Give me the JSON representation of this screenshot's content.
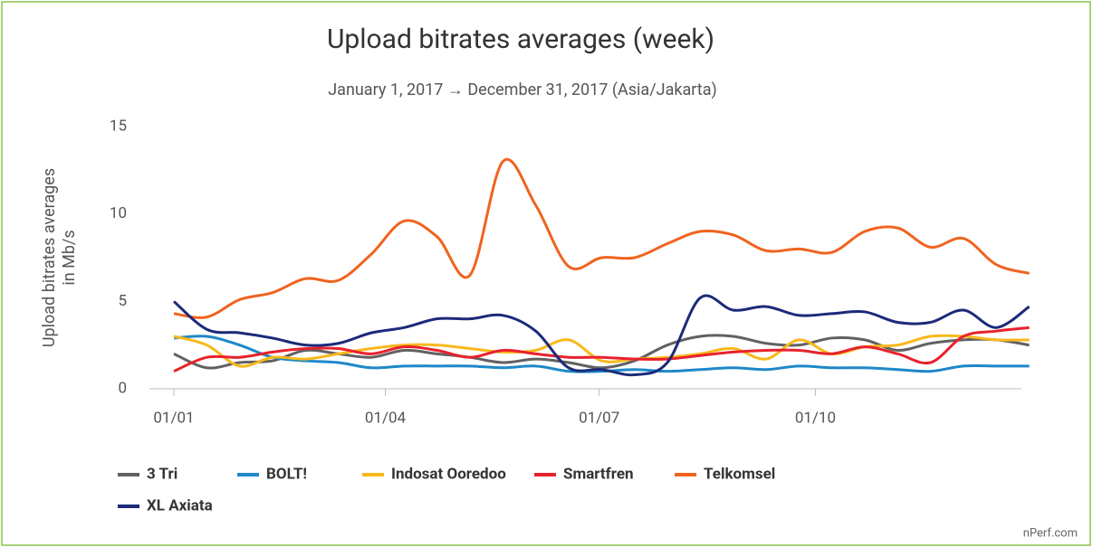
{
  "chart_data": {
    "type": "line",
    "title": "Upload bitrates averages (week)",
    "subtitle": "January 1, 2017 → December 31, 2017 (Asia/Jakarta)",
    "ylabel": [
      "Upload bitrates averages",
      "in Mb/s"
    ],
    "credit": "nPerf.com",
    "x": [
      "01/01",
      "15/01",
      "29/01",
      "12/02",
      "26/02",
      "12/03",
      "26/03",
      "09/04",
      "23/04",
      "07/05",
      "21/05",
      "04/06",
      "18/06",
      "02/07",
      "16/07",
      "30/07",
      "13/08",
      "27/08",
      "10/09",
      "24/09",
      "08/10",
      "22/10",
      "05/11",
      "19/11",
      "03/12",
      "17/12",
      "31/12"
    ],
    "xticks": [
      "01/01",
      "01/04",
      "01/07",
      "01/10"
    ],
    "ylim": [
      0,
      15
    ],
    "yticks": [
      0,
      5,
      10,
      15
    ],
    "grid": false,
    "series": [
      {
        "name": "3 Tri",
        "color": "#616161",
        "values": [
          2.0,
          1.2,
          1.5,
          1.6,
          2.2,
          2.0,
          1.8,
          2.2,
          2.0,
          1.8,
          1.5,
          1.7,
          1.5,
          1.2,
          1.6,
          2.5,
          3.0,
          3.0,
          2.6,
          2.5,
          2.9,
          2.8,
          2.2,
          2.6,
          2.8,
          2.8,
          2.5
        ]
      },
      {
        "name": "BOLT!",
        "color": "#1e88c8",
        "values": [
          2.9,
          3.0,
          2.5,
          1.8,
          1.6,
          1.5,
          1.2,
          1.3,
          1.3,
          1.3,
          1.2,
          1.3,
          1.0,
          1.0,
          1.1,
          1.0,
          1.1,
          1.2,
          1.1,
          1.3,
          1.2,
          1.2,
          1.1,
          1.0,
          1.3,
          1.3,
          1.3
        ]
      },
      {
        "name": "Indosat Ooredoo",
        "color": "#f9b81b",
        "values": [
          3.0,
          2.5,
          1.3,
          1.8,
          1.7,
          2.0,
          2.3,
          2.5,
          2.5,
          2.3,
          2.1,
          2.2,
          2.8,
          1.6,
          1.7,
          1.8,
          2.0,
          2.3,
          1.7,
          2.8,
          2.0,
          2.4,
          2.5,
          3.0,
          3.0,
          2.8,
          2.8
        ]
      },
      {
        "name": "Smartfren",
        "color": "#e8222d",
        "values": [
          1.0,
          1.8,
          1.8,
          2.1,
          2.3,
          2.3,
          2.0,
          2.4,
          2.2,
          1.8,
          2.2,
          2.0,
          1.8,
          1.8,
          1.7,
          1.7,
          1.9,
          2.1,
          2.2,
          2.2,
          2.0,
          2.4,
          2.0,
          1.5,
          3.0,
          3.3,
          3.5
        ]
      },
      {
        "name": "Telkomsel",
        "color": "#f0631f",
        "values": [
          4.3,
          4.1,
          5.1,
          5.5,
          6.3,
          6.2,
          7.7,
          9.6,
          8.7,
          6.5,
          13.0,
          10.5,
          7.0,
          7.5,
          7.5,
          8.3,
          9.0,
          8.8,
          7.9,
          8.0,
          7.8,
          9.0,
          9.2,
          8.1,
          8.6,
          7.1,
          6.6
        ]
      },
      {
        "name": "XL Axiata",
        "color": "#1b2a7a",
        "values": [
          5.0,
          3.4,
          3.2,
          2.9,
          2.5,
          2.6,
          3.2,
          3.5,
          4.0,
          4.0,
          4.2,
          3.3,
          1.2,
          1.1,
          0.8,
          1.5,
          5.2,
          4.5,
          4.7,
          4.2,
          4.3,
          4.4,
          3.8,
          3.8,
          4.5,
          3.5,
          4.7
        ]
      }
    ]
  }
}
